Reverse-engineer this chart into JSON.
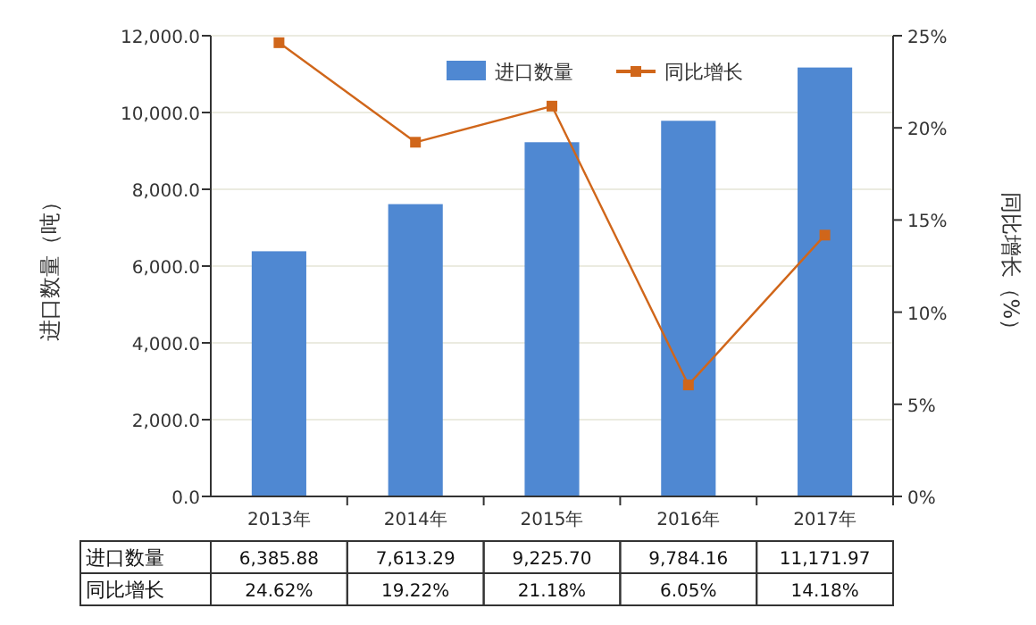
{
  "chart_data": {
    "type": "bar",
    "categories": [
      "2013年",
      "2014年",
      "2015年",
      "2016年",
      "2017年"
    ],
    "ylabel": "进口数量（吨）",
    "y2label": "同比增长（%）",
    "series": [
      {
        "name": "进口数量",
        "color": "#4f88d2",
        "values": [
          6385.88,
          7613.29,
          9225.7,
          9784.16,
          11171.97
        ],
        "value_labels": [
          "6,385.88",
          "7,613.29",
          "9,225.70",
          "9,784.16",
          "11,171.97"
        ]
      },
      {
        "name": "同比增长",
        "type": "line",
        "axis": "y2",
        "color": "#d0661a",
        "marker": "square",
        "values": [
          24.62,
          19.22,
          21.18,
          6.05,
          14.18
        ],
        "value_labels": [
          "24.62%",
          "19.22%",
          "21.18%",
          "6.05%",
          "14.18%"
        ]
      }
    ],
    "ylim": [
      0,
      12000
    ],
    "yticks": [
      {
        "value": 0,
        "label": "0.0"
      },
      {
        "value": 2000,
        "label": "2,000.0"
      },
      {
        "value": 4000,
        "label": "4,000.0"
      },
      {
        "value": 6000,
        "label": "6,000.0"
      },
      {
        "value": 8000,
        "label": "8,000.0"
      },
      {
        "value": 10000,
        "label": "10,000.0"
      },
      {
        "value": 12000,
        "label": "12,000.0"
      }
    ],
    "y2lim": [
      0,
      25
    ],
    "y2ticks": [
      {
        "value": 0,
        "label": "0%"
      },
      {
        "value": 5,
        "label": "5%"
      },
      {
        "value": 10,
        "label": "10%"
      },
      {
        "value": 15,
        "label": "15%"
      },
      {
        "value": 20,
        "label": "20%"
      },
      {
        "value": 25,
        "label": "25%"
      }
    ],
    "grid": "y",
    "legend": "top right",
    "data_labels": true
  }
}
